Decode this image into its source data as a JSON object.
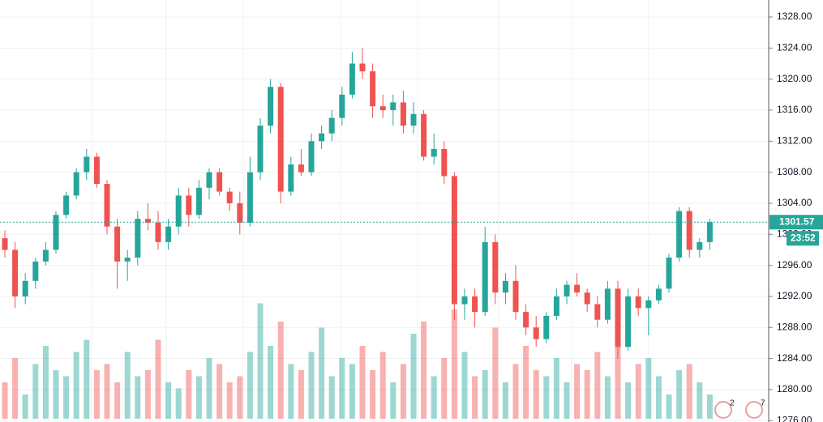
{
  "chart_data": {
    "type": "candlestick",
    "open": [
      1299.5,
      1298,
      1292,
      1294,
      1296.5,
      1298,
      1302.5,
      1305,
      1308,
      1310,
      1306.5,
      1301,
      1296.5,
      1297,
      1302,
      1301.5,
      1299,
      1301,
      1305,
      1302.5,
      1306,
      1308,
      1305.5,
      1304,
      1301.5,
      1308,
      1314,
      1319,
      1305.5,
      1309,
      1308,
      1312,
      1313,
      1315,
      1318,
      1322,
      1321,
      1316.5,
      1316,
      1317,
      1314,
      1315.5,
      1310,
      1311,
      1307.5,
      1291,
      1292,
      1290,
      1299,
      1292.5,
      1294,
      1290,
      1288,
      1286.5,
      1289.5,
      1292,
      1293.5,
      1292.5,
      1291,
      1289,
      1293,
      1285.5,
      1292,
      1290.5,
      1291.5,
      1293,
      1297,
      1303,
      1298,
      1299
    ],
    "high": [
      1300.5,
      1299,
      1295,
      1297,
      1299,
      1303,
      1305.5,
      1308.5,
      1311,
      1310.5,
      1307,
      1302,
      1298,
      1303,
      1304,
      1303,
      1302,
      1306,
      1306,
      1307,
      1308.5,
      1308.5,
      1306,
      1305.5,
      1310,
      1315,
      1320,
      1319.5,
      1310,
      1311,
      1313,
      1314,
      1316,
      1319,
      1323.5,
      1324,
      1322,
      1318,
      1318,
      1318.5,
      1317,
      1316,
      1313,
      1312,
      1308,
      1293,
      1293,
      1301,
      1300,
      1295,
      1296,
      1291,
      1289.5,
      1290,
      1293,
      1294,
      1295,
      1293,
      1292,
      1294,
      1294,
      1293,
      1293,
      1292,
      1293.5,
      1297.5,
      1303.5,
      1303.5,
      1299.5,
      1302
    ],
    "low": [
      1297,
      1290.5,
      1291,
      1293,
      1296,
      1297.5,
      1302,
      1304.5,
      1307,
      1306,
      1300,
      1293,
      1294,
      1296,
      1300.5,
      1298,
      1298,
      1300,
      1301,
      1302,
      1304.5,
      1305,
      1303,
      1300,
      1301,
      1307,
      1313,
      1304,
      1305,
      1307.5,
      1307.5,
      1311,
      1312,
      1314,
      1317.5,
      1320,
      1315,
      1315,
      1314,
      1313,
      1313,
      1309.5,
      1309,
      1306.5,
      1289,
      1289,
      1288,
      1289.5,
      1291,
      1291,
      1289,
      1287,
      1285.5,
      1286,
      1289,
      1291,
      1292,
      1290,
      1288,
      1288.5,
      1284,
      1285,
      1289.5,
      1287,
      1291,
      1292.5,
      1296.5,
      1297,
      1297,
      1298
    ],
    "close": [
      1298,
      1292,
      1294,
      1296.5,
      1298,
      1302.5,
      1305,
      1308,
      1310,
      1306.5,
      1301,
      1296.5,
      1297,
      1302,
      1301.5,
      1299,
      1301,
      1305,
      1302.5,
      1306,
      1308,
      1305.5,
      1304,
      1301.5,
      1308,
      1314,
      1319,
      1305.5,
      1309,
      1308,
      1312,
      1313,
      1315,
      1318,
      1322,
      1321,
      1316.5,
      1316,
      1317,
      1314,
      1315.5,
      1310,
      1311,
      1307.5,
      1291,
      1292,
      1290,
      1299,
      1292.5,
      1294,
      1290,
      1288,
      1286.5,
      1289.5,
      1292,
      1293.5,
      1292.5,
      1291,
      1289,
      1293,
      1285.5,
      1292,
      1290.5,
      1291.5,
      1293,
      1297,
      1303,
      1298,
      1299,
      1301.57
    ],
    "volume": [
      30,
      50,
      20,
      45,
      60,
      40,
      35,
      55,
      65,
      40,
      45,
      30,
      55,
      35,
      40,
      65,
      30,
      25,
      40,
      35,
      50,
      45,
      30,
      35,
      55,
      95,
      60,
      80,
      45,
      40,
      55,
      75,
      35,
      50,
      45,
      60,
      40,
      55,
      30,
      45,
      70,
      80,
      35,
      50,
      90,
      55,
      35,
      40,
      75,
      30,
      45,
      60,
      40,
      35,
      50,
      30,
      45,
      40,
      55,
      35,
      60,
      30,
      45,
      50,
      35,
      20,
      40,
      45,
      30,
      20
    ],
    "vlim": [
      0,
      100
    ],
    "ylim": [
      1276.24,
      1330.19
    ],
    "yticks": [
      {
        "value": 1276,
        "label": "1276.00"
      },
      {
        "value": 1280,
        "label": "1280.00"
      },
      {
        "value": 1284,
        "label": "1284.00"
      },
      {
        "value": 1288,
        "label": "1288.00"
      },
      {
        "value": 1292,
        "label": "1292.00"
      },
      {
        "value": 1296,
        "label": "1296.00"
      },
      {
        "value": 1300,
        "label": "1300.00"
      },
      {
        "value": 1304,
        "label": "1304.00"
      },
      {
        "value": 1308,
        "label": "1308.00"
      },
      {
        "value": 1312,
        "label": "1312.00"
      },
      {
        "value": 1316,
        "label": "1316.00"
      },
      {
        "value": 1320,
        "label": "1320.00"
      },
      {
        "value": 1324,
        "label": "1324.00"
      },
      {
        "value": 1328,
        "label": "1328.00"
      }
    ],
    "countdown": "23:52",
    "event_badges": [
      "2",
      "7"
    ],
    "up_color": "#26a69a",
    "down_color": "#ef5350",
    "grid": true
  }
}
